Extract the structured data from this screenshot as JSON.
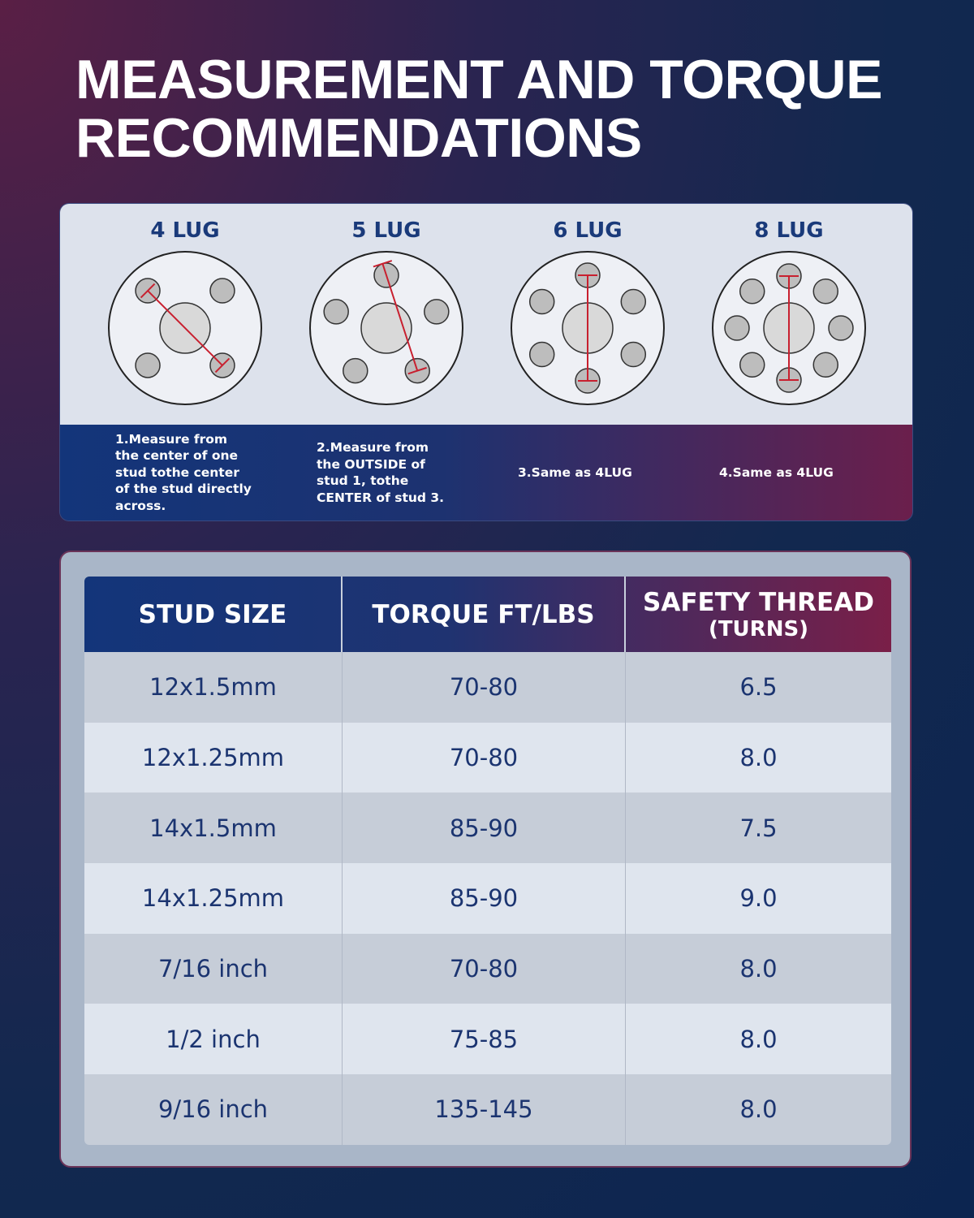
{
  "header": {
    "title_lines": [
      "MEASUREMENT AND TORQUE",
      "RECOMMENDATIONS"
    ]
  },
  "lugs": [
    {
      "label": "4 LUG",
      "note": "1.Measure from the center of one stud tothe center of the stud directly across."
    },
    {
      "label": "5 LUG",
      "note": "2.Measure from the OUTSIDE of stud 1, tothe CENTER of stud 3."
    },
    {
      "label": "6 LUG",
      "note": "3.Same as 4LUG"
    },
    {
      "label": "8 LUG",
      "note": "4.Same as 4LUG"
    }
  ],
  "table": {
    "headers": [
      "STUD SIZE",
      "TORQUE FT/LBS",
      "SAFETY THREAD"
    ],
    "safety_unit": "(TURNS)",
    "rows": [
      [
        "12x1.5mm",
        "70-80",
        "6.5"
      ],
      [
        "12x1.25mm",
        "70-80",
        "8.0"
      ],
      [
        "14x1.5mm",
        "85-90",
        "7.5"
      ],
      [
        "14x1.25mm",
        "85-90",
        "9.0"
      ],
      [
        "7/16 inch",
        "70-80",
        "8.0"
      ],
      [
        "1/2 inch",
        "75-85",
        "8.0"
      ],
      [
        "9/16 inch",
        "135-145",
        "8.0"
      ]
    ]
  }
}
